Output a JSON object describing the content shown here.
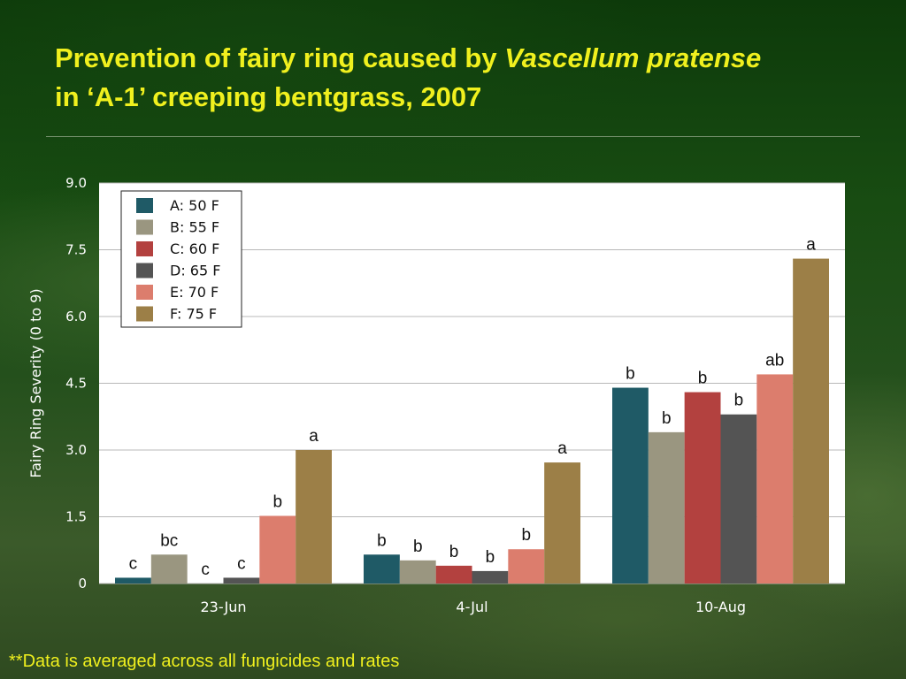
{
  "slide": {
    "title_prefix": "Prevention of fairy ring caused by",
    "title_italic": "Vascellum pratense",
    "title_line2": "in ‘A-1’ creeping bentgrass, 2007",
    "footnote": "**Data is averaged across all fungicides and rates"
  },
  "chart_data": {
    "type": "bar",
    "title": "",
    "xlabel": "",
    "ylabel": "Fairy Ring Severity (0 to 9)",
    "ylim": [
      0,
      9
    ],
    "yticks": [
      "0",
      "1.5",
      "3.0",
      "4.5",
      "6.0",
      "7.5",
      "9.0"
    ],
    "grid": true,
    "legend_position": "top-left",
    "categories": [
      "23-Jun",
      "4-Jul",
      "10-Aug"
    ],
    "series": [
      {
        "name": "A: 50 F",
        "color": "#1f5a66",
        "values": [
          0.13,
          0.65,
          4.4
        ],
        "labels": [
          "c",
          "b",
          "b"
        ]
      },
      {
        "name": "B: 55 F",
        "color": "#9a9680",
        "values": [
          0.65,
          0.52,
          3.4
        ],
        "labels": [
          "bc",
          "b",
          "b"
        ]
      },
      {
        "name": "C: 60 F",
        "color": "#b3413f",
        "values": [
          0.0,
          0.4,
          4.3
        ],
        "labels": [
          "c",
          "b",
          "b"
        ]
      },
      {
        "name": "D: 65 F",
        "color": "#545454",
        "values": [
          0.13,
          0.28,
          3.8
        ],
        "labels": [
          "c",
          "b",
          "b"
        ]
      },
      {
        "name": "E: 70 F",
        "color": "#dc7d6d",
        "values": [
          1.52,
          0.77,
          4.7
        ],
        "labels": [
          "b",
          "b",
          "ab"
        ]
      },
      {
        "name": "F: 75 F",
        "color": "#9c7f47",
        "values": [
          3.0,
          2.72,
          7.3
        ],
        "labels": [
          "a",
          "a",
          "a"
        ]
      }
    ]
  }
}
